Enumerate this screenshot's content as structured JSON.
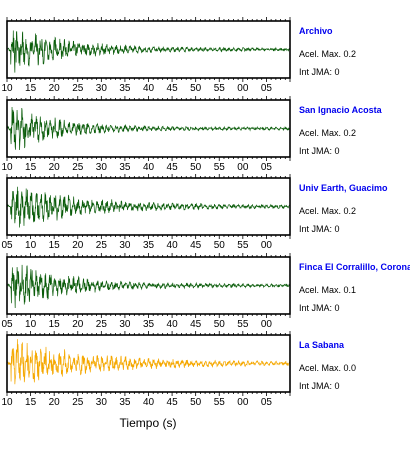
{
  "chart_data": {
    "type": "line",
    "description_free": true,
    "xlabel": "Tiempo (s)",
    "station_name_color": "#0000ee",
    "accel_prefix": "Acel. Max. ",
    "jma_prefix": "Int JMA: ",
    "panels": [
      {
        "station": "Archivo",
        "acel_max": "0.2",
        "int_jma": "0",
        "color": "#0a5c0a",
        "tick_labels": [
          "10",
          "15",
          "20",
          "25",
          "30",
          "35",
          "40",
          "45",
          "50",
          "55",
          "00",
          "05"
        ],
        "tick_start": 10,
        "decay": 0.085,
        "amplitude": 1.0,
        "seed": 3
      },
      {
        "station": "San Ignacio Acosta",
        "acel_max": "0.2",
        "int_jma": "0",
        "color": "#0a5c0a",
        "tick_labels": [
          "10",
          "15",
          "20",
          "25",
          "30",
          "35",
          "40",
          "45",
          "50",
          "55",
          "00",
          "05"
        ],
        "tick_start": 10,
        "decay": 0.1,
        "amplitude": 1.0,
        "seed": 7
      },
      {
        "station": "Univ Earth, Guacimo",
        "acel_max": "0.2",
        "int_jma": "0",
        "color": "#0a5c0a",
        "tick_labels": [
          "05",
          "10",
          "15",
          "20",
          "25",
          "30",
          "35",
          "40",
          "45",
          "50",
          "55",
          "00"
        ],
        "tick_start": 5,
        "decay": 0.07,
        "amplitude": 1.0,
        "seed": 11
      },
      {
        "station": "Finca El Corralillo, Coronado",
        "acel_max": "0.1",
        "int_jma": "0",
        "color": "#0a5c0a",
        "tick_labels": [
          "05",
          "10",
          "15",
          "20",
          "25",
          "30",
          "35",
          "40",
          "45",
          "50",
          "55",
          "00"
        ],
        "tick_start": 5,
        "decay": 0.085,
        "amplitude": 1.0,
        "seed": 19
      },
      {
        "station": "La Sabana",
        "acel_max": "0.0",
        "int_jma": "0",
        "color": "#f5a800",
        "tick_labels": [
          "10",
          "15",
          "20",
          "25",
          "30",
          "35",
          "40",
          "45",
          "50",
          "55",
          "00",
          "05"
        ],
        "tick_start": 10,
        "decay": 0.06,
        "amplitude": 1.0,
        "seed": 23
      }
    ]
  }
}
